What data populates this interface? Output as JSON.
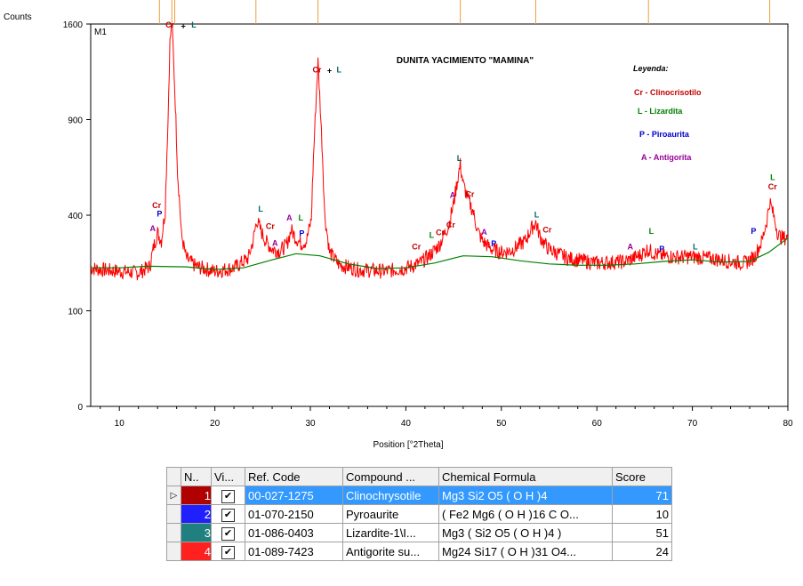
{
  "chart_data": {
    "type": "line",
    "ylabel": "Counts",
    "xlabel": "Position [°2Theta]",
    "panel_label": "M1",
    "title": "DUNITA YACIMIENTO \"MAMINA\"",
    "xlim": [
      7,
      80
    ],
    "ylim": [
      0,
      1600
    ],
    "y_scale": "sqrt",
    "x_ticks": [
      10,
      20,
      30,
      40,
      50,
      60,
      70,
      80
    ],
    "y_ticks": [
      0,
      100,
      400,
      900,
      1600
    ],
    "x_tick_labels": [
      "10",
      "20",
      "30",
      "40",
      "50",
      "60",
      "70",
      "80"
    ],
    "y_tick_labels": [
      "0",
      "100",
      "400",
      "900",
      "1600"
    ],
    "top_markers": [
      14.2,
      15.5,
      15.8,
      24.3,
      30.8,
      45.7,
      53.6,
      65.4,
      78.1
    ],
    "series": [
      {
        "color": "#ff0000",
        "x": [
          7,
          8,
          10,
          12,
          13.2,
          13.6,
          14.0,
          14.4,
          14.8,
          15.1,
          15.3,
          15.5,
          15.8,
          16.1,
          16.5,
          17,
          18,
          20,
          22,
          23.5,
          24.0,
          24.4,
          24.8,
          25.3,
          26,
          26.8,
          27.5,
          28.0,
          28.5,
          29,
          29.6,
          30.1,
          30.5,
          30.8,
          31.1,
          31.5,
          32,
          33,
          35,
          38,
          40,
          41.5,
          42.5,
          43.5,
          44.5,
          45.0,
          45.4,
          45.7,
          46.0,
          46.5,
          47,
          47.5,
          48,
          49,
          50,
          51,
          52.5,
          53.2,
          53.6,
          54.0,
          54.5,
          55,
          57,
          60,
          63,
          64.5,
          65.3,
          65.8,
          66.5,
          68,
          70,
          72,
          74,
          75.5,
          76.5,
          77.3,
          77.8,
          78.1,
          78.5,
          79,
          79.5,
          80
        ],
        "y": [
          210,
          205,
          200,
          195,
          215,
          280,
          330,
          300,
          420,
          900,
          1450,
          1620,
          1100,
          600,
          320,
          240,
          215,
          200,
          210,
          240,
          300,
          380,
          340,
          300,
          270,
          265,
          285,
          340,
          310,
          290,
          300,
          380,
          900,
          1300,
          900,
          400,
          260,
          220,
          205,
          200,
          210,
          225,
          250,
          285,
          360,
          450,
          560,
          640,
          540,
          470,
          420,
          340,
          300,
          270,
          260,
          265,
          300,
          350,
          370,
          320,
          290,
          270,
          240,
          225,
          230,
          250,
          270,
          260,
          250,
          245,
          245,
          240,
          230,
          225,
          245,
          300,
          380,
          460,
          400,
          320,
          310,
          315
        ]
      },
      {
        "color": "#008000",
        "x": [
          7,
          10,
          13,
          17,
          20,
          23,
          26,
          28.5,
          31,
          34,
          37,
          40,
          43,
          46,
          49,
          52,
          55,
          58,
          61,
          64,
          67,
          70,
          73,
          76,
          78,
          80
        ],
        "y": [
          210,
          210,
          215,
          213,
          205,
          210,
          235,
          255,
          248,
          222,
          208,
          210,
          225,
          248,
          245,
          232,
          222,
          218,
          218,
          222,
          230,
          235,
          228,
          230,
          260,
          310
        ]
      }
    ],
    "legend": {
      "title": "Leyenda:",
      "entries": [
        {
          "text": "Cr  -  Clinocrisotilo",
          "color": "#c00000"
        },
        {
          "text": "L - Lizardita",
          "color": "#008000"
        },
        {
          "text": "P - Piroaurita",
          "color": "#0000cc"
        },
        {
          "text": "A - Antigorita",
          "color": "#990099"
        }
      ]
    },
    "peak_labels": [
      {
        "text": "Cr",
        "color": "#c00000",
        "x": 15.3,
        "y": 1570
      },
      {
        "text": "+",
        "color": "#000000",
        "x": 16.7,
        "y": 1560
      },
      {
        "text": "L",
        "color": "#006666",
        "x": 17.8,
        "y": 1570
      },
      {
        "text": "Cr",
        "color": "#c00000",
        "x": 30.7,
        "y": 1220
      },
      {
        "text": "+",
        "color": "#000000",
        "x": 32.0,
        "y": 1215
      },
      {
        "text": "L",
        "color": "#006666",
        "x": 33.0,
        "y": 1220
      },
      {
        "text": "Cr",
        "color": "#c00000",
        "x": 13.9,
        "y": 430
      },
      {
        "text": "P",
        "color": "#0000cc",
        "x": 14.2,
        "y": 395
      },
      {
        "text": "A",
        "color": "#990099",
        "x": 13.5,
        "y": 335
      },
      {
        "text": "L",
        "color": "#006666",
        "x": 24.8,
        "y": 415
      },
      {
        "text": "Cr",
        "color": "#c00000",
        "x": 25.8,
        "y": 345
      },
      {
        "text": "A",
        "color": "#990099",
        "x": 26.3,
        "y": 282
      },
      {
        "text": "A",
        "color": "#990099",
        "x": 27.8,
        "y": 378
      },
      {
        "text": "L",
        "color": "#008000",
        "x": 29.0,
        "y": 378
      },
      {
        "text": "P",
        "color": "#0000cc",
        "x": 29.1,
        "y": 318
      },
      {
        "text": "Cr",
        "color": "#c00000",
        "x": 41.1,
        "y": 270
      },
      {
        "text": "L",
        "color": "#008000",
        "x": 42.7,
        "y": 310
      },
      {
        "text": "Cr",
        "color": "#c00000",
        "x": 43.6,
        "y": 320
      },
      {
        "text": "Cr",
        "color": "#c00000",
        "x": 44.7,
        "y": 350
      },
      {
        "text": "A",
        "color": "#990099",
        "x": 44.9,
        "y": 475
      },
      {
        "text": "L",
        "color": "#006666",
        "x": 45.6,
        "y": 660
      },
      {
        "text": "Cr",
        "color": "#c00000",
        "x": 46.7,
        "y": 480
      },
      {
        "text": "A",
        "color": "#990099",
        "x": 48.2,
        "y": 322
      },
      {
        "text": "P",
        "color": "#0000cc",
        "x": 49.2,
        "y": 280
      },
      {
        "text": "L",
        "color": "#006666",
        "x": 53.7,
        "y": 390
      },
      {
        "text": "Cr",
        "color": "#c00000",
        "x": 54.8,
        "y": 330
      },
      {
        "text": "A",
        "color": "#990099",
        "x": 63.5,
        "y": 270
      },
      {
        "text": "L",
        "color": "#008000",
        "x": 65.7,
        "y": 325
      },
      {
        "text": "P",
        "color": "#0000cc",
        "x": 66.8,
        "y": 262
      },
      {
        "text": "L",
        "color": "#006666",
        "x": 70.3,
        "y": 270
      },
      {
        "text": "P",
        "color": "#0000cc",
        "x": 76.4,
        "y": 325
      },
      {
        "text": "L",
        "color": "#008000",
        "x": 78.4,
        "y": 560
      },
      {
        "text": "Cr",
        "color": "#c00000",
        "x": 78.4,
        "y": 515
      }
    ]
  },
  "table": {
    "headers": [
      "N..",
      "Vi...",
      "Ref. Code",
      "Compound ...",
      "Chemical Formula",
      "Score"
    ],
    "rows": [
      {
        "num": "1",
        "color": "#b00000",
        "visible": true,
        "ref": "00-027-1275",
        "compound": "Clinochrysotile",
        "formula": "Mg3 Si2 O5 ( O H )4",
        "score": "71",
        "selected": true
      },
      {
        "num": "2",
        "color": "#2020ff",
        "visible": true,
        "ref": "01-070-2150",
        "compound": "Pyroaurite",
        "formula": "( Fe2 Mg6 ( O H )16 C O...",
        "score": "10",
        "selected": false
      },
      {
        "num": "3",
        "color": "#208080",
        "visible": true,
        "ref": "01-086-0403",
        "compound": "Lizardite-1\\I...",
        "formula": "Mg3 ( Si2 O5 ( O H )4 )",
        "score": "51",
        "selected": false
      },
      {
        "num": "4",
        "color": "#ff2020",
        "visible": true,
        "ref": "01-089-7423",
        "compound": "Antigorite su...",
        "formula": "Mg24 Si17 ( O H )31 O4...",
        "score": "24",
        "selected": false
      }
    ],
    "pointer_glyph": "▷",
    "check_glyph": "✔"
  }
}
